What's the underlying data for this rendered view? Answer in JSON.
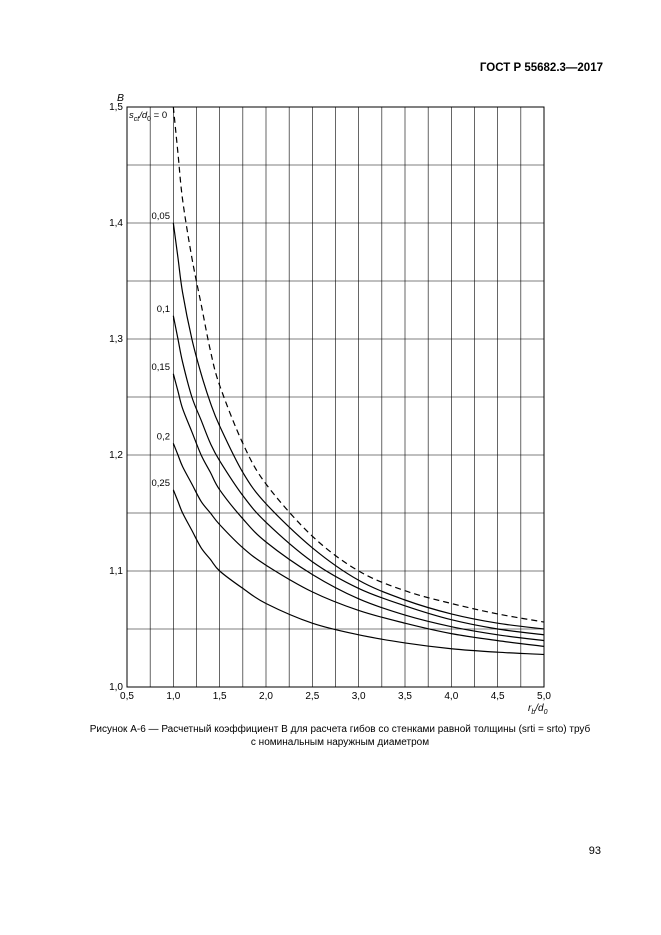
{
  "header": {
    "doc_id": "ГОСТ Р 55682.3—2017"
  },
  "caption": {
    "line1": "Рисунок А-6 — Расчетный коэффициент B для расчета гибов со стенками равной толщины (srti = srto) труб",
    "line2": "с номинальным наружным диаметром"
  },
  "page_number": "93",
  "chart_data": {
    "type": "line",
    "title": "",
    "ylabel": "B",
    "xlabel": "rb/d0",
    "xlim": [
      0.5,
      5.0
    ],
    "ylim": [
      1.0,
      1.5
    ],
    "x_ticks": [
      "0,5",
      "1,0",
      "1,5",
      "2,0",
      "2,5",
      "3,0",
      "3,5",
      "4,0",
      "4,5",
      "5,0"
    ],
    "y_ticks": [
      "1,0",
      "1,1",
      "1,2",
      "1,3",
      "1,4",
      "1,5"
    ],
    "grid": true,
    "series_label_prefix": "sct/d0 =",
    "series": [
      {
        "name": "0",
        "dashed": true,
        "x": [
          1.0,
          1.05,
          1.1,
          1.2,
          1.3,
          1.4,
          1.5,
          1.75,
          2.0,
          2.5,
          3.0,
          3.5,
          4.0,
          4.5,
          5.0
        ],
        "y": [
          1.5,
          1.46,
          1.42,
          1.37,
          1.33,
          1.29,
          1.26,
          1.21,
          1.175,
          1.13,
          1.1,
          1.083,
          1.072,
          1.063,
          1.056
        ]
      },
      {
        "name": "0,05",
        "dashed": false,
        "x": [
          1.0,
          1.05,
          1.1,
          1.2,
          1.3,
          1.4,
          1.5,
          1.75,
          2.0,
          2.5,
          3.0,
          3.5,
          4.0,
          4.5,
          5.0
        ],
        "y": [
          1.4,
          1.37,
          1.34,
          1.3,
          1.27,
          1.245,
          1.225,
          1.185,
          1.158,
          1.12,
          1.092,
          1.075,
          1.063,
          1.055,
          1.05
        ]
      },
      {
        "name": "0,1",
        "dashed": false,
        "x": [
          1.0,
          1.05,
          1.1,
          1.2,
          1.3,
          1.4,
          1.5,
          1.75,
          2.0,
          2.5,
          3.0,
          3.5,
          4.0,
          4.5,
          5.0
        ],
        "y": [
          1.32,
          1.3,
          1.28,
          1.25,
          1.23,
          1.21,
          1.195,
          1.165,
          1.142,
          1.108,
          1.085,
          1.07,
          1.058,
          1.05,
          1.045
        ]
      },
      {
        "name": "0,15",
        "dashed": false,
        "x": [
          1.0,
          1.05,
          1.1,
          1.2,
          1.3,
          1.4,
          1.5,
          1.75,
          2.0,
          2.5,
          3.0,
          3.5,
          4.0,
          4.5,
          5.0
        ],
        "y": [
          1.27,
          1.255,
          1.24,
          1.22,
          1.2,
          1.185,
          1.17,
          1.145,
          1.125,
          1.097,
          1.076,
          1.062,
          1.052,
          1.045,
          1.04
        ]
      },
      {
        "name": "0,2",
        "dashed": false,
        "x": [
          1.0,
          1.05,
          1.1,
          1.2,
          1.3,
          1.4,
          1.5,
          1.75,
          2.0,
          2.5,
          3.0,
          3.5,
          4.0,
          4.5,
          5.0
        ],
        "y": [
          1.21,
          1.2,
          1.19,
          1.175,
          1.16,
          1.15,
          1.14,
          1.12,
          1.105,
          1.082,
          1.066,
          1.055,
          1.046,
          1.04,
          1.035
        ]
      },
      {
        "name": "0,25",
        "dashed": false,
        "x": [
          1.0,
          1.05,
          1.1,
          1.2,
          1.3,
          1.4,
          1.5,
          1.75,
          2.0,
          2.5,
          3.0,
          3.5,
          4.0,
          4.5,
          5.0
        ],
        "y": [
          1.17,
          1.16,
          1.15,
          1.135,
          1.12,
          1.11,
          1.1,
          1.085,
          1.072,
          1.055,
          1.045,
          1.038,
          1.033,
          1.03,
          1.028
        ]
      }
    ]
  }
}
